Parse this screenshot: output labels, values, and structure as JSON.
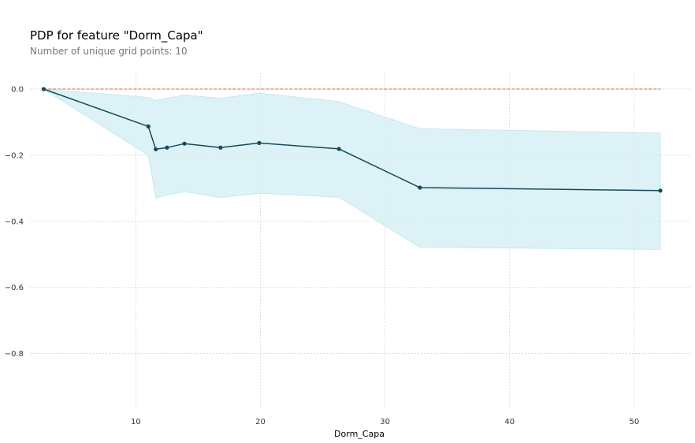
{
  "chart_data": {
    "type": "line",
    "title": "PDP for feature \"Dorm_Capa\"",
    "subtitle": "Number of unique grid points: 10",
    "xlabel": "Dorm_Capa",
    "ylabel": "",
    "xlim": [
      1.5,
      54.5
    ],
    "ylim": [
      -0.97,
      0.05
    ],
    "x_ticks": [
      10,
      20,
      30,
      40,
      50
    ],
    "y_ticks": [
      0.0,
      -0.2,
      -0.4,
      -0.6,
      -0.8
    ],
    "x_tick_labels": [
      "10",
      "20",
      "30",
      "40",
      "50"
    ],
    "y_tick_labels": [
      "0.0",
      "−0.2",
      "−0.4",
      "−0.6",
      "−0.8"
    ],
    "grid": true,
    "series": [
      {
        "x": [
          2.6,
          11.0,
          11.6,
          12.5,
          13.9,
          16.8,
          19.9,
          26.3,
          32.8,
          52.1
        ],
        "values": [
          0.0,
          -0.113,
          -0.182,
          -0.177,
          -0.165,
          -0.177,
          -0.163,
          -0.181,
          -0.298,
          -0.307
        ],
        "band_upper": [
          0.0,
          -0.025,
          -0.035,
          -0.028,
          -0.018,
          -0.028,
          -0.012,
          -0.038,
          -0.12,
          -0.133
        ],
        "band_lower": [
          0.0,
          -0.2,
          -0.33,
          -0.32,
          -0.31,
          -0.328,
          -0.315,
          -0.327,
          -0.478,
          -0.485
        ],
        "color": "#154a5a",
        "band_color": "#d7f0f4"
      }
    ],
    "reference_line": {
      "y": 0.0,
      "color": "#e0643a"
    }
  }
}
